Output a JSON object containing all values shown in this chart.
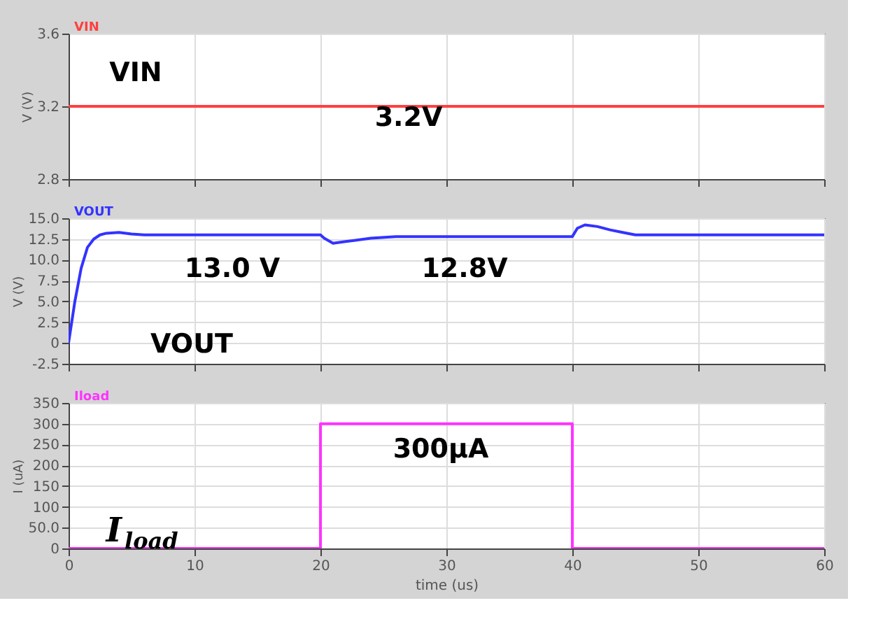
{
  "chart_data": [
    {
      "type": "line",
      "ylabel": "V (V)",
      "xlim": [
        0,
        60
      ],
      "xticks": [
        0,
        10,
        20,
        30,
        40,
        50,
        60
      ],
      "ylim": [
        2.8,
        3.6
      ],
      "yticks": [
        2.8,
        3.2,
        3.6
      ],
      "tick_labels": "y",
      "grid": true,
      "legend": "top left",
      "series": [
        {
          "name": "VIN",
          "color": "#ff4040",
          "x": [
            0,
            60
          ],
          "values": [
            3.2,
            3.2
          ]
        }
      ],
      "annotations": [
        "VIN",
        "3.2V"
      ]
    },
    {
      "type": "line",
      "ylabel": "V (V)",
      "xlim": [
        0,
        60
      ],
      "xticks": [
        0,
        10,
        20,
        30,
        40,
        50,
        60
      ],
      "ylim": [
        -2.5,
        15
      ],
      "yticks": [
        -2.5,
        0,
        2.5,
        {
          "value": 5,
          "label": "5.0"
        },
        7.5,
        {
          "value": 10,
          "label": "10.0"
        },
        12.5,
        {
          "value": 15,
          "label": "15.0"
        }
      ],
      "tick_labels": "y",
      "grid": true,
      "legend": "top left",
      "series": [
        {
          "name": "VOUT",
          "color": "#3333ff",
          "x": [
            0,
            0.5,
            1,
            1.5,
            2,
            2.5,
            3,
            4,
            5,
            6,
            8,
            20,
            20.3,
            21,
            22,
            24,
            26,
            30,
            40,
            40.4,
            41,
            42,
            43,
            44,
            45,
            46,
            50,
            60
          ],
          "values": [
            0,
            5,
            9,
            11.5,
            12.5,
            13.0,
            13.2,
            13.3,
            13.1,
            13.0,
            13.0,
            13.0,
            12.6,
            12.0,
            12.2,
            12.6,
            12.8,
            12.8,
            12.8,
            13.8,
            14.2,
            14.0,
            13.6,
            13.3,
            13.0,
            13.0,
            13.0,
            13.0
          ]
        }
      ],
      "annotations": [
        "13.0 V",
        "12.8V",
        "VOUT"
      ]
    },
    {
      "type": "line",
      "ylabel": "I (uA)",
      "xlabel": "time (us)",
      "xlim": [
        0,
        60
      ],
      "xticks": [
        0,
        10,
        20,
        30,
        40,
        50,
        60
      ],
      "ylim": [
        0,
        350
      ],
      "yticks": [
        0,
        {
          "value": 50,
          "label": "50.0"
        },
        100,
        150,
        200,
        250,
        300,
        350
      ],
      "grid": true,
      "legend": "top left",
      "series": [
        {
          "name": "Iload",
          "color": "#ff33ff",
          "x": [
            0,
            20,
            20,
            40,
            40,
            60
          ],
          "values": [
            0,
            0,
            300,
            300,
            0,
            0
          ]
        }
      ],
      "annotations": [
        "300μA",
        "I$_{load}$"
      ]
    }
  ]
}
